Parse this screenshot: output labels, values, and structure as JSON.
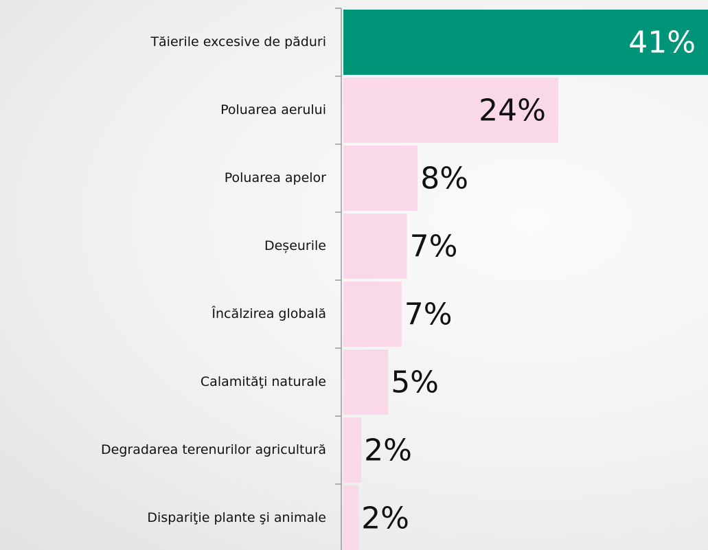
{
  "chart_data": {
    "type": "bar",
    "orientation": "horizontal",
    "categories": [
      "Tăierile excesive de păduri",
      "Poluarea aerului",
      "Poluarea apelor",
      "Deșeurile",
      "Încălzirea globală",
      "Calamităţi naturale",
      "Degradarea terenurilor agricultură",
      "Dispariţie plante şi animale"
    ],
    "values": [
      41,
      24,
      8.3,
      7.1,
      6.5,
      5,
      2,
      1.7
    ],
    "value_labels": [
      "41%",
      "24%",
      "8%",
      "7%",
      "7%",
      "5%",
      "2%",
      "2%"
    ],
    "colors": [
      "#009479",
      "#f9d9e9",
      "#f9d9e9",
      "#f9d9e9",
      "#f9d9e9",
      "#f9d9e9",
      "#f9d9e9",
      "#f9d9e9"
    ]
  }
}
